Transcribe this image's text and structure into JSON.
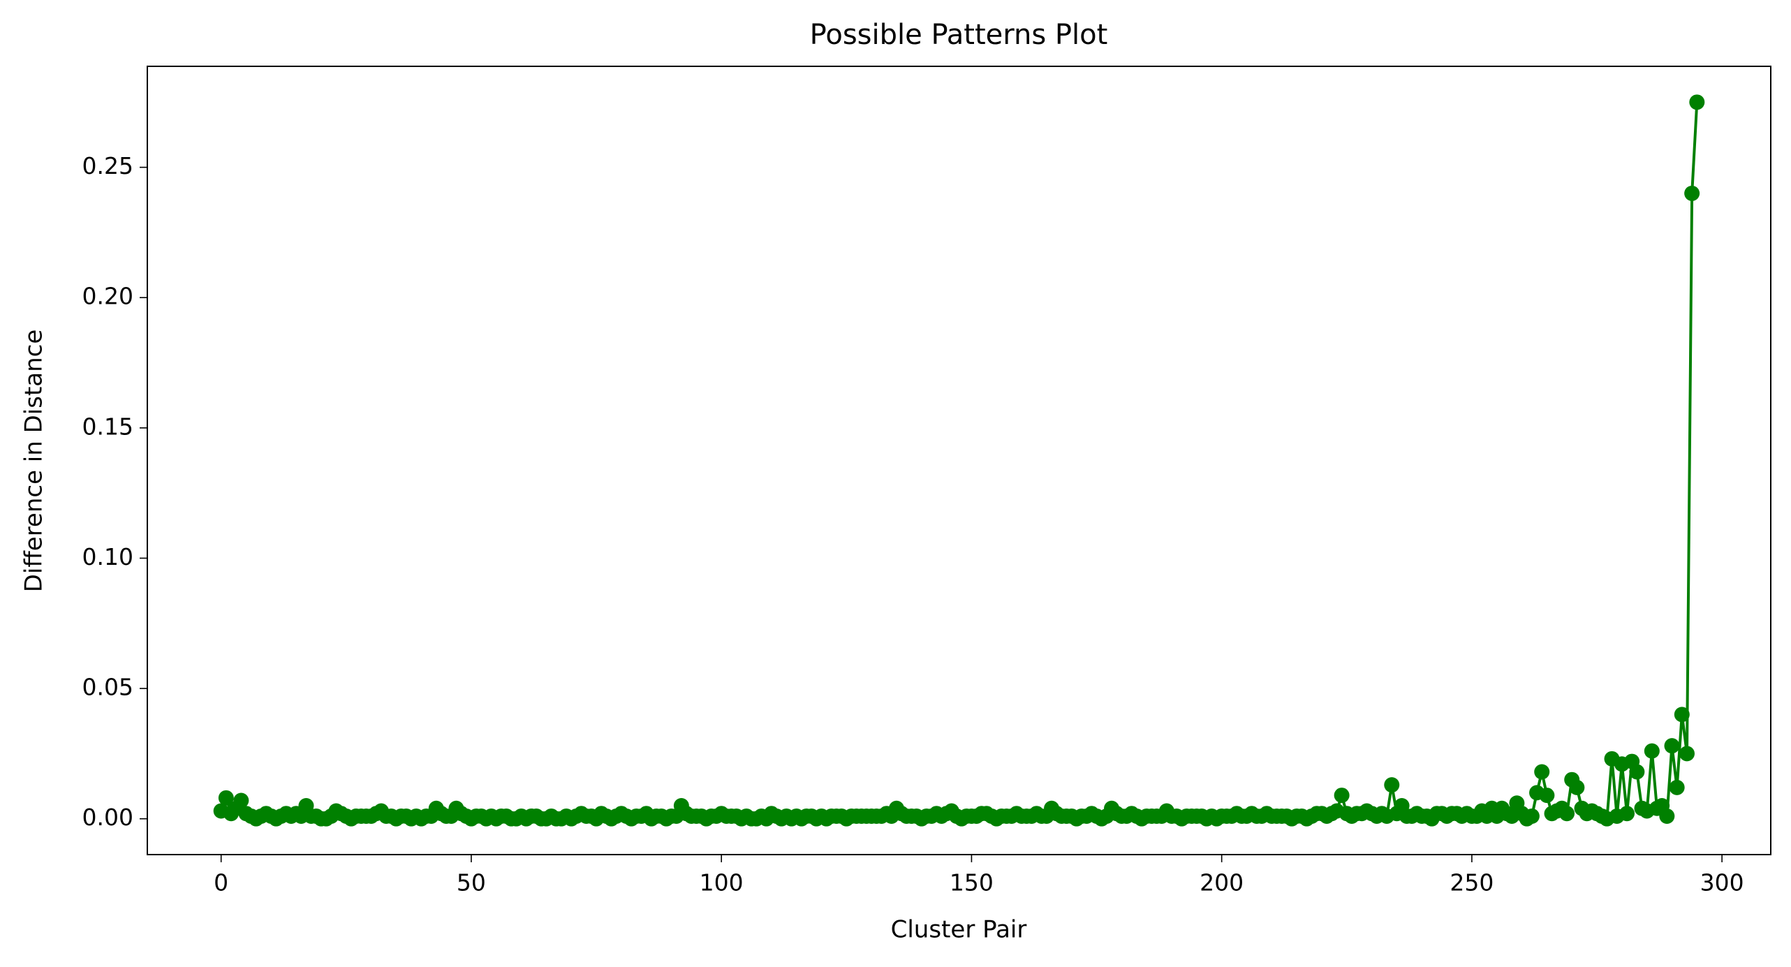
{
  "chart_data": {
    "type": "line",
    "title": "Possible Patterns Plot",
    "x_label": "Cluster Pair",
    "y_label": "Difference in Distance",
    "x": [
      0,
      1,
      2,
      3,
      4,
      5,
      6,
      7,
      8,
      9,
      10,
      11,
      12,
      13,
      14,
      15,
      16,
      17,
      18,
      19,
      20,
      21,
      22,
      23,
      24,
      25,
      26,
      27,
      28,
      29,
      30,
      31,
      32,
      33,
      34,
      35,
      36,
      37,
      38,
      39,
      40,
      41,
      42,
      43,
      44,
      45,
      46,
      47,
      48,
      49,
      50,
      51,
      52,
      53,
      54,
      55,
      56,
      57,
      58,
      59,
      60,
      61,
      62,
      63,
      64,
      65,
      66,
      67,
      68,
      69,
      70,
      71,
      72,
      73,
      74,
      75,
      76,
      77,
      78,
      79,
      80,
      81,
      82,
      83,
      84,
      85,
      86,
      87,
      88,
      89,
      90,
      91,
      92,
      93,
      94,
      95,
      96,
      97,
      98,
      99,
      100,
      101,
      102,
      103,
      104,
      105,
      106,
      107,
      108,
      109,
      110,
      111,
      112,
      113,
      114,
      115,
      116,
      117,
      118,
      119,
      120,
      121,
      122,
      123,
      124,
      125,
      126,
      127,
      128,
      129,
      130,
      131,
      132,
      133,
      134,
      135,
      136,
      137,
      138,
      139,
      140,
      141,
      142,
      143,
      144,
      145,
      146,
      147,
      148,
      149,
      150,
      151,
      152,
      153,
      154,
      155,
      156,
      157,
      158,
      159,
      160,
      161,
      162,
      163,
      164,
      165,
      166,
      167,
      168,
      169,
      170,
      171,
      172,
      173,
      174,
      175,
      176,
      177,
      178,
      179,
      180,
      181,
      182,
      183,
      184,
      185,
      186,
      187,
      188,
      189,
      190,
      191,
      192,
      193,
      194,
      195,
      196,
      197,
      198,
      199,
      200,
      201,
      202,
      203,
      204,
      205,
      206,
      207,
      208,
      209,
      210,
      211,
      212,
      213,
      214,
      215,
      216,
      217,
      218,
      219,
      220,
      221,
      222,
      223,
      224,
      225,
      226,
      227,
      228,
      229,
      230,
      231,
      232,
      233,
      234,
      235,
      236,
      237,
      238,
      239,
      240,
      241,
      242,
      243,
      244,
      245,
      246,
      247,
      248,
      249,
      250,
      251,
      252,
      253,
      254,
      255,
      256,
      257,
      258,
      259,
      260,
      261,
      262,
      263,
      264,
      265,
      266,
      267,
      268,
      269,
      270,
      271,
      272,
      273,
      274,
      275,
      276,
      277,
      278,
      279,
      280,
      281,
      282,
      283,
      284,
      285,
      286,
      287,
      288,
      289,
      290,
      291,
      292,
      293,
      294,
      295
    ],
    "series": [
      {
        "color": "#008000",
        "values": [
          0.003,
          0.008,
          0.002,
          0.004,
          0.007,
          0.002,
          0.001,
          0.0,
          0.001,
          0.002,
          0.001,
          0.0,
          0.001,
          0.002,
          0.001,
          0.002,
          0.001,
          0.005,
          0.001,
          0.001,
          0.0,
          0.0,
          0.001,
          0.003,
          0.002,
          0.001,
          0.0,
          0.001,
          0.001,
          0.001,
          0.001,
          0.002,
          0.003,
          0.001,
          0.001,
          0.0,
          0.001,
          0.001,
          0.0,
          0.001,
          0.0,
          0.001,
          0.001,
          0.004,
          0.002,
          0.001,
          0.001,
          0.004,
          0.002,
          0.001,
          0.0,
          0.001,
          0.001,
          0.0,
          0.001,
          0.0,
          0.001,
          0.001,
          0.0,
          0.0,
          0.001,
          0.0,
          0.001,
          0.001,
          0.0,
          0.0,
          0.001,
          0.0,
          0.0,
          0.001,
          0.0,
          0.001,
          0.002,
          0.001,
          0.001,
          0.0,
          0.002,
          0.001,
          0.0,
          0.001,
          0.002,
          0.001,
          0.0,
          0.001,
          0.001,
          0.002,
          0.0,
          0.001,
          0.001,
          0.0,
          0.001,
          0.001,
          0.005,
          0.002,
          0.001,
          0.001,
          0.001,
          0.0,
          0.001,
          0.001,
          0.002,
          0.001,
          0.001,
          0.001,
          0.0,
          0.001,
          0.0,
          0.0,
          0.001,
          0.0,
          0.002,
          0.001,
          0.0,
          0.001,
          0.0,
          0.001,
          0.0,
          0.001,
          0.001,
          0.0,
          0.001,
          0.0,
          0.001,
          0.001,
          0.001,
          0.0,
          0.001,
          0.001,
          0.001,
          0.001,
          0.001,
          0.001,
          0.001,
          0.002,
          0.001,
          0.004,
          0.002,
          0.001,
          0.001,
          0.001,
          0.0,
          0.001,
          0.001,
          0.002,
          0.001,
          0.002,
          0.003,
          0.001,
          0.0,
          0.001,
          0.001,
          0.001,
          0.002,
          0.002,
          0.001,
          0.0,
          0.001,
          0.001,
          0.001,
          0.002,
          0.001,
          0.001,
          0.001,
          0.002,
          0.001,
          0.001,
          0.004,
          0.002,
          0.001,
          0.001,
          0.001,
          0.0,
          0.001,
          0.001,
          0.002,
          0.001,
          0.0,
          0.001,
          0.004,
          0.002,
          0.001,
          0.001,
          0.002,
          0.001,
          0.0,
          0.001,
          0.001,
          0.001,
          0.001,
          0.003,
          0.001,
          0.001,
          0.0,
          0.001,
          0.001,
          0.001,
          0.001,
          0.0,
          0.001,
          0.0,
          0.001,
          0.001,
          0.001,
          0.002,
          0.001,
          0.001,
          0.002,
          0.001,
          0.001,
          0.002,
          0.001,
          0.001,
          0.001,
          0.001,
          0.0,
          0.001,
          0.001,
          0.0,
          0.001,
          0.002,
          0.002,
          0.001,
          0.002,
          0.003,
          0.009,
          0.002,
          0.001,
          0.002,
          0.002,
          0.003,
          0.002,
          0.001,
          0.002,
          0.001,
          0.013,
          0.002,
          0.005,
          0.001,
          0.001,
          0.002,
          0.001,
          0.001,
          0.0,
          0.002,
          0.002,
          0.001,
          0.002,
          0.002,
          0.001,
          0.002,
          0.001,
          0.001,
          0.003,
          0.001,
          0.004,
          0.001,
          0.004,
          0.002,
          0.001,
          0.006,
          0.002,
          0.0,
          0.001,
          0.01,
          0.018,
          0.009,
          0.002,
          0.003,
          0.004,
          0.002,
          0.015,
          0.012,
          0.004,
          0.002,
          0.003,
          0.002,
          0.001,
          0.0,
          0.023,
          0.001,
          0.021,
          0.002,
          0.022,
          0.018,
          0.004,
          0.003,
          0.026,
          0.004,
          0.005,
          0.001,
          0.028,
          0.012,
          0.04,
          0.025,
          0.24,
          0.275
        ]
      }
    ],
    "xlim": [
      -14.75,
      309.75
    ],
    "xticks": [
      0,
      50,
      100,
      150,
      200,
      250,
      300
    ],
    "ylim": [
      -0.01375,
      0.28875
    ],
    "yticks": [
      {
        "value": 0,
        "label": "0.00"
      },
      0.05,
      {
        "value": 0.1,
        "label": "0.10"
      },
      0.15,
      {
        "value": 0.2,
        "label": "0.20"
      },
      0.25
    ],
    "grid": false
  }
}
